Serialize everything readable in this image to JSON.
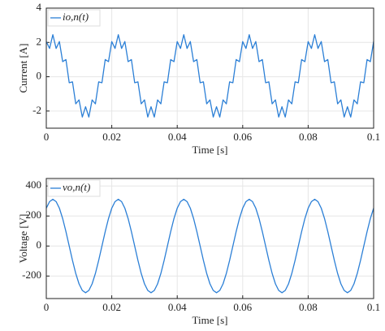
{
  "chart_data": [
    {
      "type": "line",
      "xlabel": "Time [s]",
      "ylabel": "Current [A]",
      "x": [
        0,
        0.001,
        0.002,
        0.003,
        0.004,
        0.005,
        0.006,
        0.007,
        0.008,
        0.009,
        0.01,
        0.011,
        0.012,
        0.013,
        0.014,
        0.015,
        0.016,
        0.017,
        0.018,
        0.019,
        0.02,
        0.021,
        0.022,
        0.023,
        0.024,
        0.025,
        0.026,
        0.027,
        0.028,
        0.029,
        0.03,
        0.031,
        0.032,
        0.033,
        0.034,
        0.035,
        0.036,
        0.037,
        0.038,
        0.039,
        0.04,
        0.041,
        0.042,
        0.043,
        0.044,
        0.045,
        0.046,
        0.047,
        0.048,
        0.049,
        0.05,
        0.051,
        0.052,
        0.053,
        0.054,
        0.055,
        0.056,
        0.057,
        0.058,
        0.059,
        0.06,
        0.061,
        0.062,
        0.063,
        0.064,
        0.065,
        0.066,
        0.067,
        0.068,
        0.069,
        0.07,
        0.071,
        0.072,
        0.073,
        0.074,
        0.075,
        0.076,
        0.077,
        0.078,
        0.079,
        0.08,
        0.081,
        0.082,
        0.083,
        0.084,
        0.085,
        0.086,
        0.087,
        0.088,
        0.089,
        0.09,
        0.091,
        0.092,
        0.093,
        0.094,
        0.095,
        0.096,
        0.097,
        0.098,
        0.099,
        0.1
      ],
      "series": [
        {
          "name": "io,n(t)",
          "color": "#2b7fd6",
          "values": [
            2.05,
            1.65,
            2.45,
            1.65,
            2.05,
            0.88,
            1,
            -0.35,
            -0.3,
            -1.58,
            -1.35,
            -2.35,
            -1.75,
            -2.35,
            -1.35,
            -1.58,
            -0.3,
            -0.35,
            1,
            0.88,
            2.05,
            1.65,
            2.45,
            1.65,
            2.05,
            0.88,
            1,
            -0.35,
            -0.3,
            -1.58,
            -1.35,
            -2.35,
            -1.75,
            -2.35,
            -1.35,
            -1.58,
            -0.3,
            -0.35,
            1,
            0.88,
            2.05,
            1.65,
            2.45,
            1.65,
            2.05,
            0.88,
            1,
            -0.35,
            -0.3,
            -1.58,
            -1.35,
            -2.35,
            -1.75,
            -2.35,
            -1.35,
            -1.58,
            -0.3,
            -0.35,
            1,
            0.88,
            2.05,
            1.65,
            2.45,
            1.65,
            2.05,
            0.88,
            1,
            -0.35,
            -0.3,
            -1.58,
            -1.35,
            -2.35,
            -1.75,
            -2.35,
            -1.35,
            -1.58,
            -0.3,
            -0.35,
            1,
            0.88,
            2.05,
            1.65,
            2.45,
            1.65,
            2.05,
            0.88,
            1,
            -0.35,
            -0.3,
            -1.58,
            -1.35,
            -2.35,
            -1.75,
            -2.35,
            -1.35,
            -1.58,
            -0.3,
            -0.35,
            1,
            0.88,
            2.05
          ]
        }
      ],
      "xlim": [
        0,
        0.1
      ],
      "xticks": [
        0,
        0.02,
        0.04,
        0.06,
        0.08,
        0.1
      ],
      "ylim": [
        -3,
        4
      ],
      "yticks": [
        -2,
        0,
        2,
        4
      ],
      "grid": true,
      "legend": "upper left"
    },
    {
      "type": "line",
      "xlabel": "Time [s]",
      "ylabel": "Voltage [V]",
      "x": [
        0,
        0.001,
        0.002,
        0.003,
        0.004,
        0.005,
        0.006,
        0.007,
        0.008,
        0.009,
        0.01,
        0.011,
        0.012,
        0.013,
        0.014,
        0.015,
        0.016,
        0.017,
        0.018,
        0.019,
        0.02,
        0.021,
        0.022,
        0.023,
        0.024,
        0.025,
        0.026,
        0.027,
        0.028,
        0.029,
        0.03,
        0.031,
        0.032,
        0.033,
        0.034,
        0.035,
        0.036,
        0.037,
        0.038,
        0.039,
        0.04,
        0.041,
        0.042,
        0.043,
        0.044,
        0.045,
        0.046,
        0.047,
        0.048,
        0.049,
        0.05,
        0.051,
        0.052,
        0.053,
        0.054,
        0.055,
        0.056,
        0.057,
        0.058,
        0.059,
        0.06,
        0.061,
        0.062,
        0.063,
        0.064,
        0.065,
        0.066,
        0.067,
        0.068,
        0.069,
        0.07,
        0.071,
        0.072,
        0.073,
        0.074,
        0.075,
        0.076,
        0.077,
        0.078,
        0.079,
        0.08,
        0.081,
        0.082,
        0.083,
        0.084,
        0.085,
        0.086,
        0.087,
        0.088,
        0.089,
        0.09,
        0.091,
        0.092,
        0.093,
        0.094,
        0.095,
        0.096,
        0.097,
        0.098,
        0.099,
        0.1
      ],
      "series": [
        {
          "name": "vo,n(t)",
          "color": "#2b7fd6",
          "values": [
            252,
            296,
            311,
            296,
            252,
            183,
            96,
            0,
            -96,
            -183,
            -252,
            -296,
            -311,
            -296,
            -252,
            -183,
            -96,
            0,
            96,
            183,
            252,
            296,
            311,
            296,
            252,
            183,
            96,
            0,
            -96,
            -183,
            -252,
            -296,
            -311,
            -296,
            -252,
            -183,
            -96,
            0,
            96,
            183,
            252,
            296,
            311,
            296,
            252,
            183,
            96,
            0,
            -96,
            -183,
            -252,
            -296,
            -311,
            -296,
            -252,
            -183,
            -96,
            0,
            96,
            183,
            252,
            296,
            311,
            296,
            252,
            183,
            96,
            0,
            -96,
            -183,
            -252,
            -296,
            -311,
            -296,
            -252,
            -183,
            -96,
            0,
            96,
            183,
            252,
            296,
            311,
            296,
            252,
            183,
            96,
            0,
            -96,
            -183,
            -252,
            -296,
            -311,
            -296,
            -252,
            -183,
            -96,
            0,
            96,
            183,
            252
          ]
        }
      ],
      "xlim": [
        0,
        0.1
      ],
      "xticks": [
        0,
        0.02,
        0.04,
        0.06,
        0.08,
        0.1
      ],
      "ylim": [
        -350,
        450
      ],
      "yticks": [
        -200,
        0,
        200,
        400
      ],
      "grid": true,
      "legend": "upper left"
    }
  ]
}
